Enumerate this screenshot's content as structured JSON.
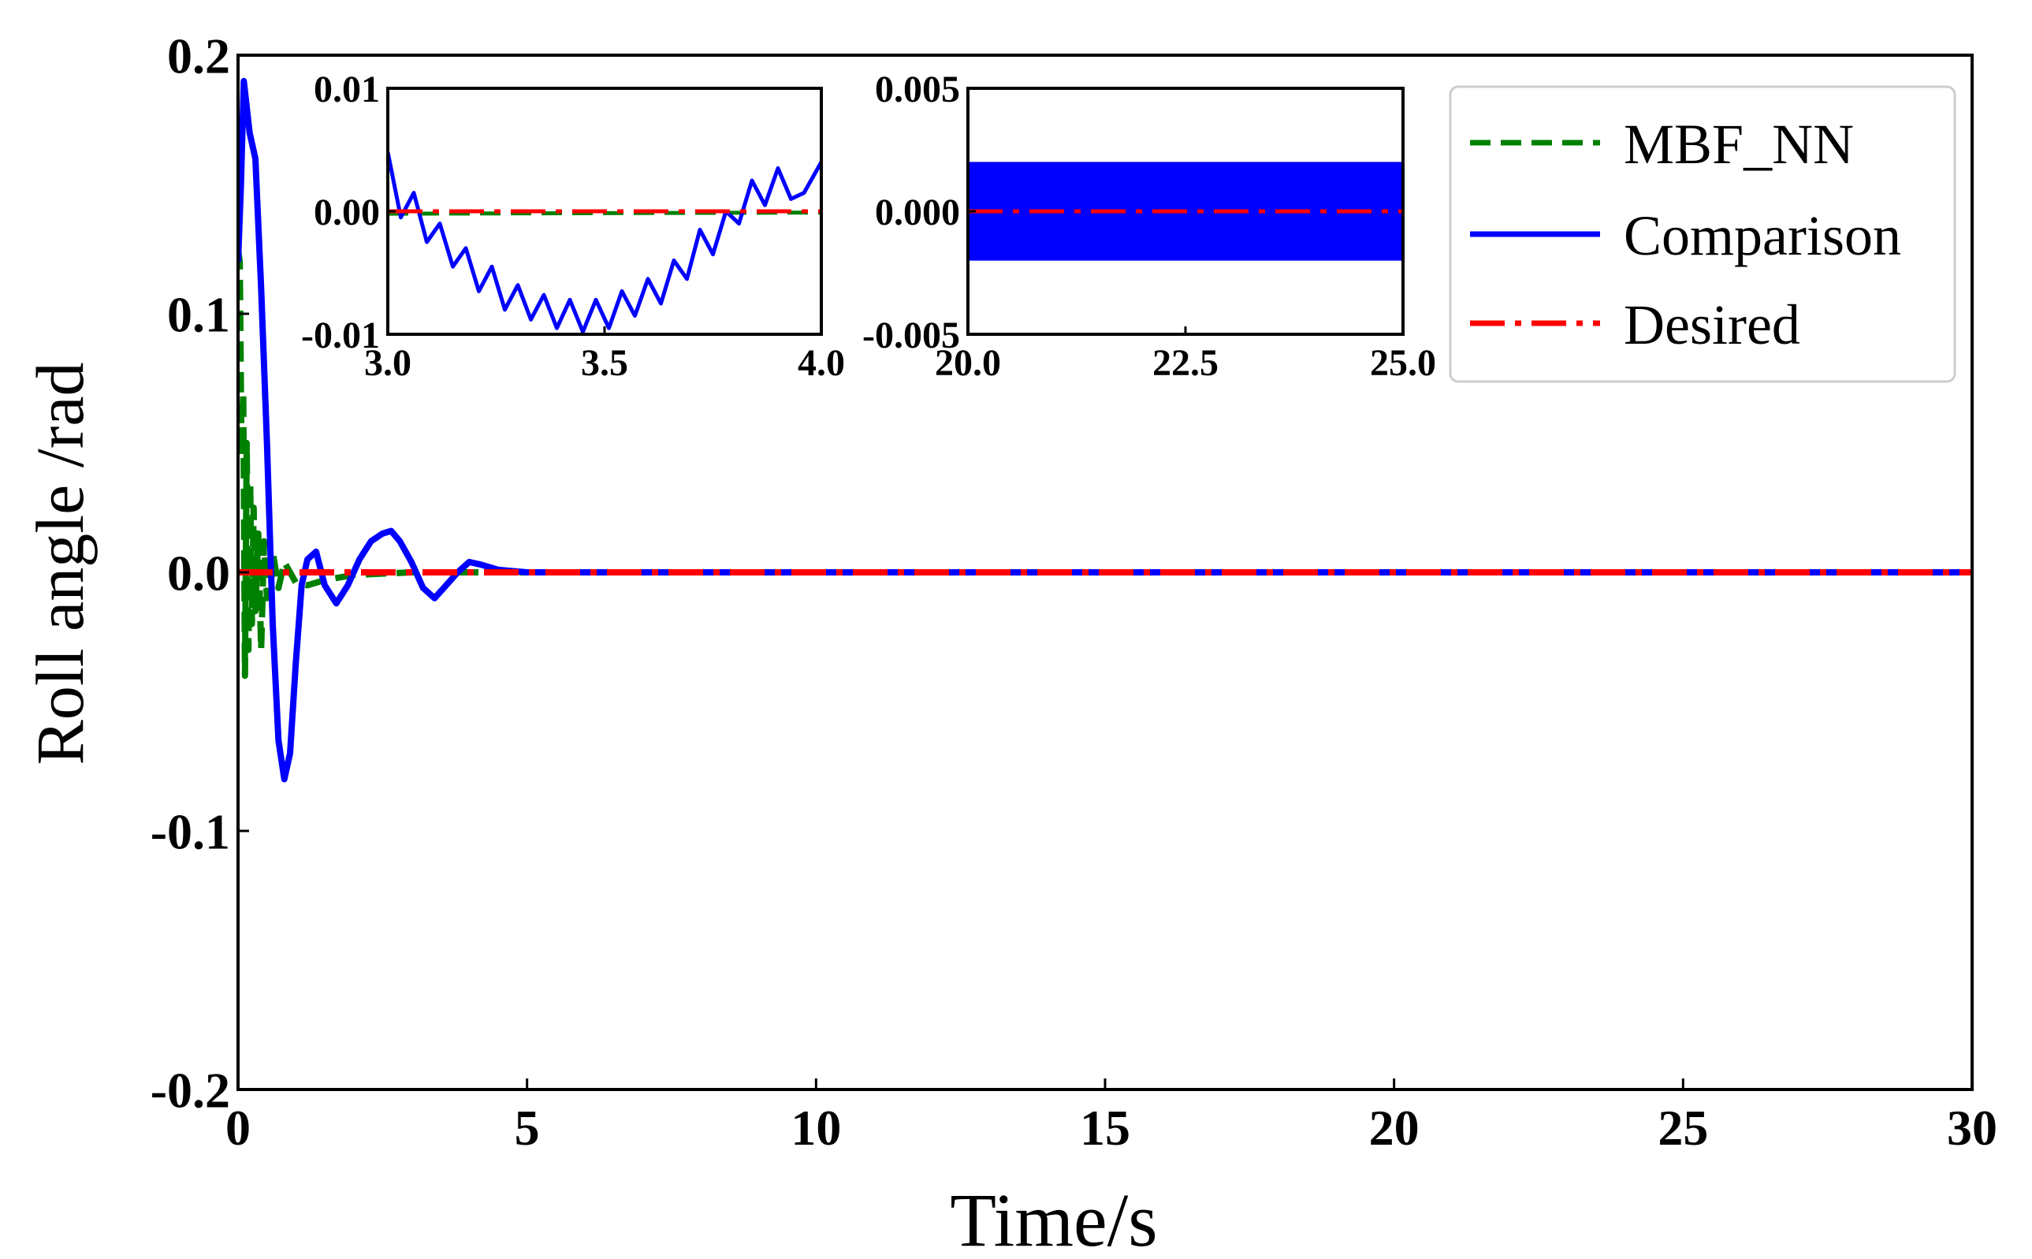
{
  "chart_data": [
    {
      "type": "line",
      "role": "main",
      "title": "",
      "xlabel": "Time/s",
      "ylabel": "Roll angle /rad",
      "xlim": [
        0,
        30
      ],
      "ylim": [
        -0.2,
        0.2
      ],
      "xticks": [
        0,
        5,
        10,
        15,
        20,
        25,
        30
      ],
      "xtick_labels": [
        "0",
        "5",
        "10",
        "15",
        "20",
        "25",
        "30"
      ],
      "yticks": [
        -0.2,
        -0.1,
        0.0,
        0.1,
        0.2
      ],
      "ytick_labels": [
        "-0.2",
        "-0.1",
        "0.0",
        "0.1",
        "0.2"
      ],
      "grid": false,
      "legend_position": "top-right",
      "series": [
        {
          "name": "MBF_NN",
          "color": "#008000",
          "style": "dashed",
          "x": [
            0.0,
            0.03,
            0.06,
            0.09,
            0.12,
            0.15,
            0.18,
            0.21,
            0.24,
            0.27,
            0.3,
            0.35,
            0.4,
            0.45,
            0.5,
            0.6,
            0.7,
            0.8,
            1.0,
            1.2,
            1.5,
            2.0,
            3.0,
            4.0,
            30.0
          ],
          "y": [
            0.125,
            0.12,
            0.045,
            0.07,
            -0.04,
            0.05,
            -0.03,
            0.035,
            -0.02,
            0.025,
            -0.015,
            0.015,
            -0.03,
            0.012,
            -0.01,
            0.008,
            -0.006,
            0.004,
            -0.004,
            -0.005,
            -0.003,
            -0.001,
            0.0,
            0.0,
            0.0
          ]
        },
        {
          "name": "Comparison",
          "color": "#0000ff",
          "style": "solid",
          "x": [
            0.0,
            0.05,
            0.1,
            0.2,
            0.3,
            0.4,
            0.5,
            0.6,
            0.7,
            0.8,
            0.9,
            1.0,
            1.1,
            1.2,
            1.35,
            1.5,
            1.7,
            1.9,
            2.1,
            2.3,
            2.5,
            2.65,
            2.8,
            3.0,
            3.2,
            3.4,
            3.6,
            3.8,
            4.0,
            4.2,
            4.5,
            5.0,
            6.0,
            30.0
          ],
          "y": [
            0.12,
            0.15,
            0.19,
            0.17,
            0.16,
            0.11,
            0.05,
            -0.02,
            -0.065,
            -0.08,
            -0.07,
            -0.035,
            -0.005,
            0.005,
            0.008,
            -0.005,
            -0.012,
            -0.005,
            0.005,
            0.012,
            0.015,
            0.016,
            0.012,
            0.004,
            -0.006,
            -0.01,
            -0.005,
            0.0,
            0.004,
            0.003,
            0.001,
            0.0,
            0.0,
            0.0
          ]
        },
        {
          "name": "Desired",
          "color": "#ff0000",
          "style": "dashdot",
          "x": [
            0,
            30
          ],
          "y": [
            0,
            0
          ]
        }
      ]
    },
    {
      "type": "line",
      "role": "inset",
      "xlim": [
        3.0,
        4.0
      ],
      "ylim": [
        -0.01,
        0.01
      ],
      "xticks": [
        3.0,
        3.5,
        4.0
      ],
      "xtick_labels": [
        "3.0",
        "3.5",
        "4.0"
      ],
      "yticks": [
        -0.01,
        0.0,
        0.01
      ],
      "ytick_labels": [
        "-0.01",
        "0.00",
        "0.01"
      ],
      "series": [
        {
          "name": "MBF_NN",
          "color": "#008000",
          "style": "dashed",
          "x": [
            3.0,
            4.0
          ],
          "y": [
            -0.0002,
            -0.0001
          ]
        },
        {
          "name": "Comparison",
          "color": "#0000ff",
          "style": "solid",
          "x": [
            3.0,
            3.03,
            3.06,
            3.09,
            3.12,
            3.15,
            3.18,
            3.21,
            3.24,
            3.27,
            3.3,
            3.33,
            3.36,
            3.39,
            3.42,
            3.45,
            3.48,
            3.51,
            3.54,
            3.57,
            3.6,
            3.63,
            3.66,
            3.69,
            3.72,
            3.75,
            3.78,
            3.81,
            3.84,
            3.87,
            3.9,
            3.93,
            3.96,
            4.0
          ],
          "y": [
            0.0048,
            -0.0005,
            0.0015,
            -0.0025,
            -0.001,
            -0.0045,
            -0.003,
            -0.0065,
            -0.0045,
            -0.008,
            -0.006,
            -0.0088,
            -0.0068,
            -0.0095,
            -0.0072,
            -0.0098,
            -0.0072,
            -0.0095,
            -0.0065,
            -0.0085,
            -0.0055,
            -0.0075,
            -0.004,
            -0.0055,
            -0.0015,
            -0.0035,
            0.0,
            -0.001,
            0.0025,
            0.0005,
            0.0035,
            0.001,
            0.0015,
            0.004
          ]
        },
        {
          "name": "Desired",
          "color": "#ff0000",
          "style": "dashdot",
          "x": [
            3.0,
            4.0
          ],
          "y": [
            0,
            0
          ]
        }
      ]
    },
    {
      "type": "line",
      "role": "inset",
      "xlim": [
        20.0,
        25.0
      ],
      "ylim": [
        -0.005,
        0.005
      ],
      "xticks": [
        20.0,
        22.5,
        25.0
      ],
      "xtick_labels": [
        "20.0",
        "22.5",
        "25.0"
      ],
      "yticks": [
        -0.005,
        0.0,
        0.005
      ],
      "ytick_labels": [
        "-0.005",
        "0.000",
        "0.005"
      ],
      "series": [
        {
          "name": "Comparison",
          "color": "#0000ff",
          "style": "solid",
          "band": true,
          "amplitude": 0.002,
          "x": [
            20.0,
            25.0
          ],
          "y": [
            0,
            0
          ]
        },
        {
          "name": "Desired",
          "color": "#ff0000",
          "style": "dashdot",
          "x": [
            20.0,
            25.0
          ],
          "y": [
            0,
            0
          ]
        }
      ]
    }
  ]
}
